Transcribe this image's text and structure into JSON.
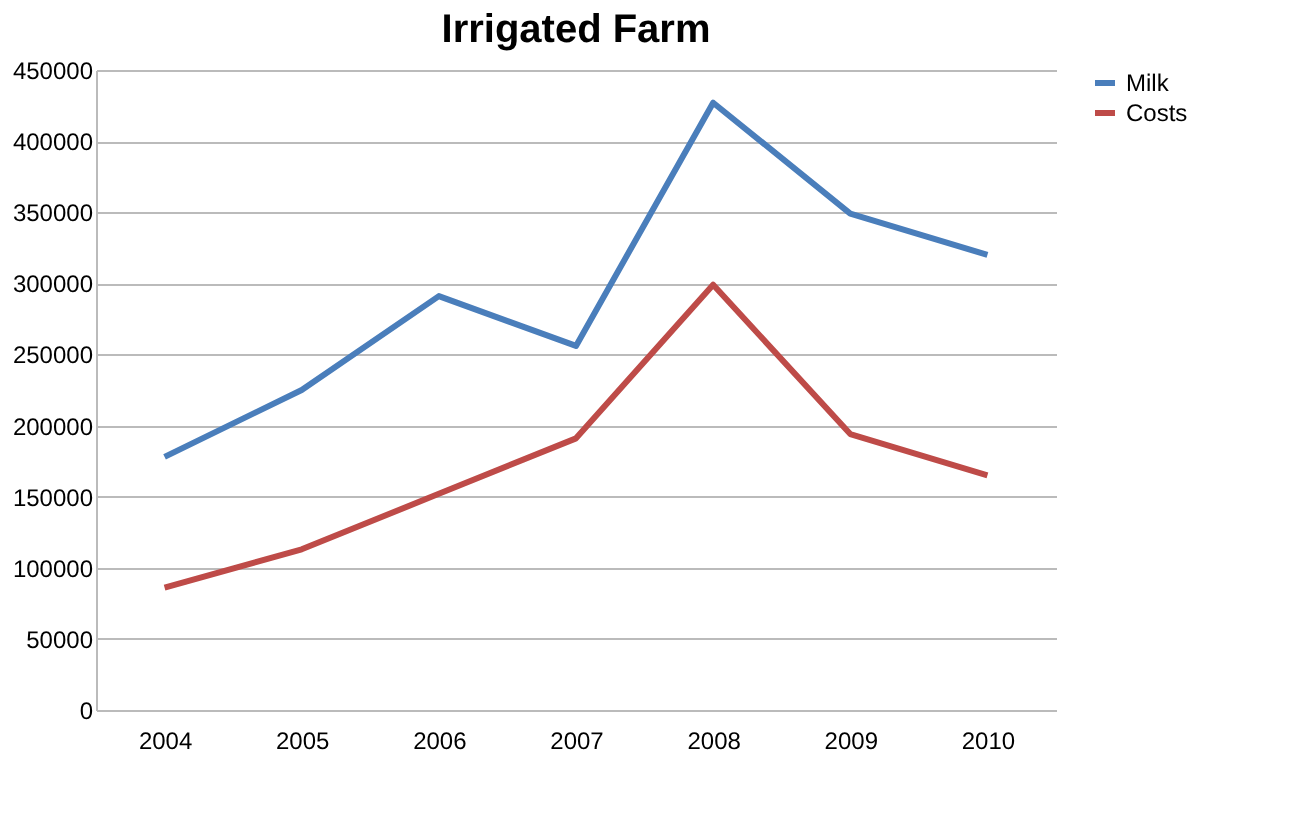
{
  "chart_data": {
    "type": "line",
    "title": "Irrigated Farm",
    "categories": [
      "2004",
      "2005",
      "2006",
      "2007",
      "2008",
      "2009",
      "2010"
    ],
    "series": [
      {
        "name": "Milk",
        "color": "#4a7ebb",
        "values": [
          178000,
          225000,
          291000,
          256000,
          427000,
          349000,
          320000
        ]
      },
      {
        "name": "Costs",
        "color": "#be4b48",
        "values": [
          86000,
          113000,
          152000,
          191000,
          299000,
          194000,
          165000
        ]
      }
    ],
    "ylim": [
      0,
      450000
    ],
    "yticks": [
      0,
      50000,
      100000,
      150000,
      200000,
      250000,
      300000,
      350000,
      400000,
      450000
    ],
    "grid": "y",
    "legend": "right",
    "marker": "none",
    "line_style": "solid"
  }
}
